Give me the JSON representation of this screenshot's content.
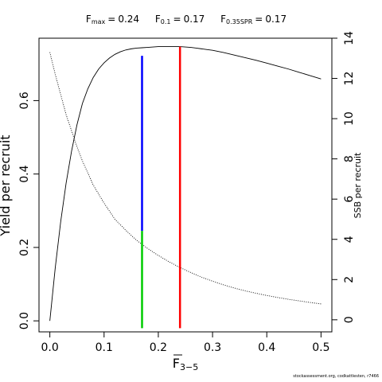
{
  "chart_data": {
    "type": "line",
    "title": {
      "parts": [
        {
          "base": "F",
          "sub": "max",
          "value": "0.24"
        },
        {
          "base": "F",
          "sub": "0.1",
          "value": "0.17"
        },
        {
          "base": "F",
          "sub": "0.35SPR",
          "value": "0.17"
        }
      ]
    },
    "xlabel": {
      "base": "F",
      "sub": "3−5",
      "overline": true
    },
    "ylabel_left": "Yield per recruit",
    "ylabel_right": "SSB per recruit",
    "xlim": [
      -0.02,
      0.52
    ],
    "ylim_left": [
      -0.03,
      0.77
    ],
    "ylim_right": [
      -0.6,
      14.0
    ],
    "x_ticks": [
      0.0,
      0.1,
      0.2,
      0.3,
      0.4,
      0.5
    ],
    "x_tick_labels": [
      "0.0",
      "0.1",
      "0.2",
      "0.3",
      "0.4",
      "0.5"
    ],
    "y_left_ticks": [
      0.0,
      0.2,
      0.4,
      0.6
    ],
    "y_left_tick_labels": [
      "0.0",
      "0.2",
      "0.4",
      "0.6"
    ],
    "y_right_ticks": [
      0,
      2,
      4,
      6,
      8,
      10,
      12,
      14
    ],
    "y_right_tick_labels": [
      "0",
      "2",
      "4",
      "6",
      "8",
      "10",
      "12",
      "14"
    ],
    "series": [
      {
        "axis": "left",
        "style": "solid",
        "color": "#000000",
        "x": [
          0.0,
          0.01,
          0.02,
          0.03,
          0.04,
          0.05,
          0.06,
          0.07,
          0.08,
          0.09,
          0.1,
          0.11,
          0.12,
          0.13,
          0.14,
          0.15,
          0.16,
          0.17,
          0.18,
          0.19,
          0.2,
          0.21,
          0.22,
          0.23,
          0.24,
          0.25,
          0.26,
          0.27,
          0.28,
          0.29,
          0.3,
          0.32,
          0.34,
          0.36,
          0.38,
          0.4,
          0.42,
          0.44,
          0.46,
          0.48,
          0.5
        ],
        "y": [
          0.0,
          0.145,
          0.27,
          0.375,
          0.462,
          0.534,
          0.592,
          0.632,
          0.663,
          0.686,
          0.703,
          0.716,
          0.726,
          0.733,
          0.738,
          0.741,
          0.743,
          0.744,
          0.745,
          0.746,
          0.747,
          0.747,
          0.747,
          0.747,
          0.747,
          0.746,
          0.745,
          0.743,
          0.741,
          0.739,
          0.737,
          0.731,
          0.724,
          0.717,
          0.71,
          0.702,
          0.694,
          0.686,
          0.677,
          0.668,
          0.659
        ]
      },
      {
        "axis": "right",
        "style": "dotted",
        "color": "#000000",
        "x": [
          0.0,
          0.01,
          0.02,
          0.03,
          0.04,
          0.05,
          0.06,
          0.07,
          0.08,
          0.1,
          0.12,
          0.14,
          0.16,
          0.18,
          0.2,
          0.22,
          0.24,
          0.26,
          0.28,
          0.3,
          0.32,
          0.34,
          0.36,
          0.38,
          0.4,
          0.42,
          0.44,
          0.46,
          0.48,
          0.5
        ],
        "y": [
          13.3,
          12.2,
          11.2,
          10.2,
          9.4,
          8.6,
          7.9,
          7.3,
          6.7,
          5.8,
          5.0,
          4.45,
          3.95,
          3.55,
          3.2,
          2.88,
          2.6,
          2.35,
          2.12,
          1.92,
          1.74,
          1.58,
          1.44,
          1.32,
          1.21,
          1.11,
          1.02,
          0.94,
          0.86,
          0.79
        ]
      }
    ],
    "reference_lines": [
      {
        "x": 0.17,
        "y_from": 0.245,
        "y_to": 0.722,
        "axis": "left",
        "color": "#0000ff"
      },
      {
        "x": 0.17,
        "y_from": -0.02,
        "y_to": 0.245,
        "axis": "left",
        "color": "#00cc00"
      },
      {
        "x": 0.24,
        "y_from": -0.02,
        "y_to": 0.747,
        "axis": "left",
        "color": "#ff0000"
      }
    ]
  },
  "footer": "stockassessment.org, codkattlesten, r7466"
}
